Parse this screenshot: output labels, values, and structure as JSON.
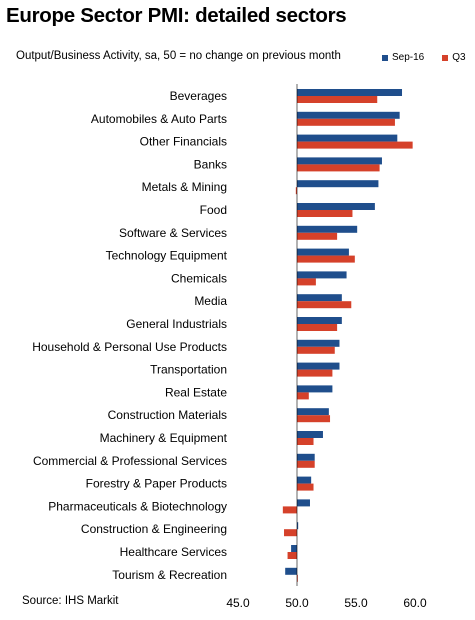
{
  "title": "Europe Sector PMI: detailed sectors",
  "subtitle": "Output/Business Activity, sa, 50 = no change on previous month",
  "source": "Source: IHS Markit",
  "chart_data": {
    "type": "bar",
    "orientation": "horizontal",
    "categories": [
      "Beverages",
      "Automobiles & Auto Parts",
      "Other Financials",
      "Banks",
      "Metals & Mining",
      "Food",
      "Software & Services",
      "Technology Equipment",
      "Chemicals",
      "Media",
      "General Industrials",
      "Household & Personal Use Products",
      "Transportation",
      "Real Estate",
      "Construction Materials",
      "Machinery & Equipment",
      "Commercial & Professional Services",
      "Forestry & Paper Products",
      "Pharmaceuticals & Biotechnology",
      "Construction & Engineering",
      "Healthcare Services",
      "Tourism & Recreation"
    ],
    "series": [
      {
        "name": "Sep-16",
        "color": "#1f4e8c",
        "values": [
          58.9,
          58.7,
          58.5,
          57.2,
          56.9,
          56.6,
          55.1,
          54.4,
          54.2,
          53.8,
          53.8,
          53.6,
          53.6,
          53.0,
          52.7,
          52.2,
          51.5,
          51.2,
          51.1,
          50.1,
          49.5,
          49.0
        ]
      },
      {
        "name": "Q3",
        "color": "#d5412a",
        "values": [
          56.8,
          58.3,
          59.8,
          57.0,
          49.9,
          54.7,
          53.4,
          54.9,
          51.6,
          54.6,
          53.4,
          53.2,
          53.0,
          51.0,
          52.8,
          51.4,
          51.5,
          51.4,
          48.8,
          48.9,
          49.2,
          50.0
        ]
      }
    ],
    "x_ticks": [
      "45.0",
      "50.0",
      "55.0",
      "60.0"
    ],
    "xlim": [
      45,
      61
    ],
    "legend_position": "top-right",
    "grid": false
  }
}
